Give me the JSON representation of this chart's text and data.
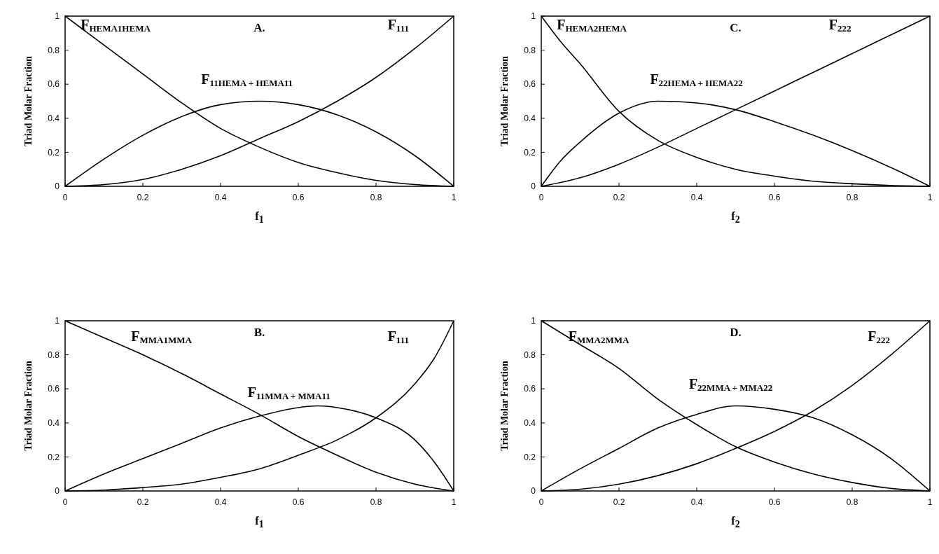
{
  "chart_data": [
    {
      "type": "line",
      "title": "A.",
      "xlabel": "f$_{1}$",
      "ylabel": "Triad Molar Fraction",
      "xlim": [
        0,
        1
      ],
      "ylim": [
        0,
        1
      ],
      "xticks": [
        0,
        0.2,
        0.4,
        0.6,
        0.8,
        1
      ],
      "yticks": [
        0,
        0.2,
        0.4,
        0.6,
        0.8,
        1
      ],
      "line_style": "solid",
      "series": [
        {
          "name": "F$_{HEMA1HEMA}$",
          "color": "#000000",
          "x": [
            0,
            0.1,
            0.2,
            0.3,
            0.4,
            0.5,
            0.6,
            0.7,
            0.8,
            0.9,
            1
          ],
          "values": [
            1,
            0.83,
            0.66,
            0.49,
            0.34,
            0.23,
            0.14,
            0.08,
            0.035,
            0.01,
            0
          ]
        },
        {
          "name": "F$_{111}$",
          "color": "#000000",
          "x": [
            0,
            0.1,
            0.2,
            0.3,
            0.4,
            0.5,
            0.6,
            0.7,
            0.8,
            0.9,
            1
          ],
          "values": [
            0,
            0.01,
            0.04,
            0.1,
            0.18,
            0.28,
            0.38,
            0.5,
            0.64,
            0.81,
            1
          ]
        },
        {
          "name": "F$_{11HEMA + HEMA11}$",
          "color": "#000000",
          "x": [
            0,
            0.1,
            0.2,
            0.3,
            0.4,
            0.5,
            0.6,
            0.7,
            0.8,
            0.9,
            1
          ],
          "values": [
            0,
            0.16,
            0.3,
            0.41,
            0.48,
            0.5,
            0.48,
            0.42,
            0.32,
            0.18,
            0
          ]
        }
      ]
    },
    {
      "type": "line",
      "title": "C.",
      "xlabel": "f$_{2}$",
      "ylabel": "Triad Molar Fraction",
      "xlim": [
        0,
        1
      ],
      "ylim": [
        0,
        1
      ],
      "xticks": [
        0,
        0.2,
        0.4,
        0.6,
        0.8,
        1
      ],
      "yticks": [
        0,
        0.2,
        0.4,
        0.6,
        0.8,
        1
      ],
      "line_style": "solid",
      "series": [
        {
          "name": "F$_{HEMA2HEMA}$",
          "color": "#000000",
          "x": [
            0,
            0.05,
            0.1,
            0.2,
            0.3,
            0.4,
            0.5,
            0.6,
            0.7,
            0.8,
            0.9,
            1
          ],
          "values": [
            1,
            0.85,
            0.72,
            0.44,
            0.27,
            0.17,
            0.1,
            0.06,
            0.03,
            0.015,
            0.005,
            0
          ]
        },
        {
          "name": "F$_{222}$",
          "color": "#000000",
          "x": [
            0,
            0.1,
            0.2,
            0.3,
            0.4,
            0.5,
            0.6,
            0.7,
            0.8,
            0.9,
            1
          ],
          "values": [
            0,
            0.05,
            0.13,
            0.23,
            0.34,
            0.45,
            0.56,
            0.67,
            0.78,
            0.89,
            1
          ]
        },
        {
          "name": "F$_{22HEMA + HEMA22}$",
          "color": "#000000",
          "x": [
            0,
            0.05,
            0.1,
            0.2,
            0.3,
            0.4,
            0.5,
            0.6,
            0.7,
            0.8,
            0.9,
            1
          ],
          "values": [
            0,
            0.15,
            0.26,
            0.43,
            0.5,
            0.49,
            0.45,
            0.38,
            0.3,
            0.21,
            0.11,
            0
          ]
        }
      ]
    },
    {
      "type": "line",
      "title": "B.",
      "xlabel": "f$_{1}$",
      "ylabel": "Triad Molar Fraction",
      "xlim": [
        0,
        1
      ],
      "ylim": [
        0,
        1
      ],
      "xticks": [
        0,
        0.2,
        0.4,
        0.6,
        0.8,
        1
      ],
      "yticks": [
        0,
        0.2,
        0.4,
        0.6,
        0.8,
        1
      ],
      "line_style": "solid",
      "series": [
        {
          "name": "F$_{MMA1MMA}$",
          "color": "#000000",
          "x": [
            0,
            0.1,
            0.2,
            0.3,
            0.4,
            0.5,
            0.6,
            0.7,
            0.8,
            0.9,
            1
          ],
          "values": [
            1,
            0.9,
            0.8,
            0.69,
            0.57,
            0.45,
            0.32,
            0.21,
            0.11,
            0.04,
            0
          ]
        },
        {
          "name": "F$_{111}$",
          "color": "#000000",
          "x": [
            0,
            0.1,
            0.2,
            0.3,
            0.4,
            0.5,
            0.6,
            0.7,
            0.8,
            0.9,
            0.95,
            1
          ],
          "values": [
            0,
            0.005,
            0.02,
            0.04,
            0.08,
            0.13,
            0.21,
            0.3,
            0.43,
            0.63,
            0.78,
            1
          ]
        },
        {
          "name": "F$_{11MMA + MMA11}$",
          "color": "#000000",
          "x": [
            0,
            0.1,
            0.2,
            0.3,
            0.4,
            0.5,
            0.6,
            0.65,
            0.7,
            0.8,
            0.9,
            0.95,
            1
          ],
          "values": [
            0,
            0.1,
            0.19,
            0.28,
            0.37,
            0.44,
            0.49,
            0.5,
            0.49,
            0.43,
            0.3,
            0.17,
            0
          ]
        }
      ]
    },
    {
      "type": "line",
      "title": "D.",
      "xlabel": "f$_{2}$",
      "ylabel": "Triad Molar Fraction",
      "xlim": [
        0,
        1
      ],
      "ylim": [
        0,
        1
      ],
      "xticks": [
        0,
        0.2,
        0.4,
        0.6,
        0.8,
        1
      ],
      "yticks": [
        0,
        0.2,
        0.4,
        0.6,
        0.8,
        1
      ],
      "line_style": "solid",
      "series": [
        {
          "name": "F$_{MMA2MMA}$",
          "color": "#000000",
          "x": [
            0,
            0.1,
            0.2,
            0.3,
            0.4,
            0.5,
            0.6,
            0.7,
            0.8,
            0.9,
            1
          ],
          "values": [
            1,
            0.86,
            0.72,
            0.54,
            0.39,
            0.26,
            0.17,
            0.1,
            0.05,
            0.015,
            0
          ]
        },
        {
          "name": "F$_{222}$",
          "color": "#000000",
          "x": [
            0,
            0.1,
            0.2,
            0.3,
            0.4,
            0.5,
            0.6,
            0.7,
            0.8,
            0.9,
            1
          ],
          "values": [
            0,
            0.01,
            0.04,
            0.09,
            0.16,
            0.25,
            0.35,
            0.47,
            0.62,
            0.8,
            1
          ]
        },
        {
          "name": "F$_{22MMA + MMA22}$",
          "color": "#000000",
          "x": [
            0,
            0.1,
            0.2,
            0.3,
            0.4,
            0.5,
            0.6,
            0.7,
            0.8,
            0.9,
            1
          ],
          "values": [
            0,
            0.13,
            0.25,
            0.37,
            0.45,
            0.5,
            0.48,
            0.43,
            0.33,
            0.19,
            0
          ]
        }
      ]
    }
  ]
}
